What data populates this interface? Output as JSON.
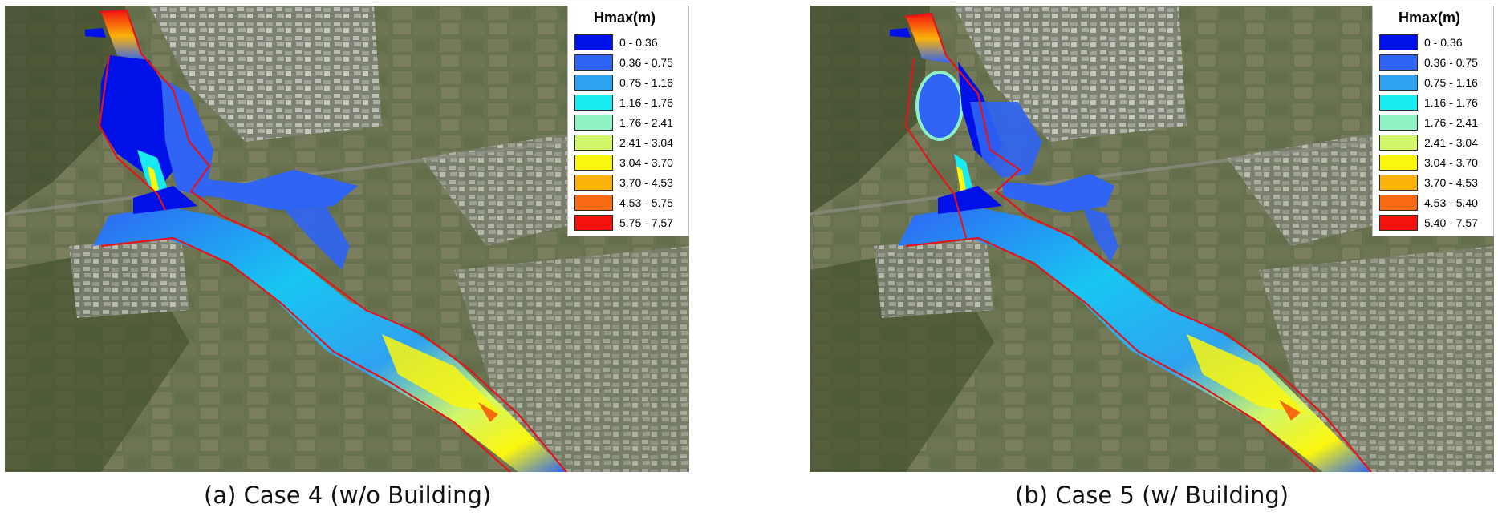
{
  "panels": [
    {
      "caption": "(a) Case 4 (w/o Building)",
      "legend": {
        "title": "Hmax(m)",
        "items": [
          {
            "label": "0 - 0.36",
            "color": "#0010e8"
          },
          {
            "label": "0.36 - 0.75",
            "color": "#2f64f4"
          },
          {
            "label": "0.75 - 1.16",
            "color": "#2fa2f0"
          },
          {
            "label": "1.16 - 1.76",
            "color": "#18eaf2"
          },
          {
            "label": "1.76 - 2.41",
            "color": "#8ff2c4"
          },
          {
            "label": "2.41 - 3.04",
            "color": "#d2f76a"
          },
          {
            "label": "3.04 - 3.70",
            "color": "#fbf60e"
          },
          {
            "label": "3.70 - 4.53",
            "color": "#fbb20a"
          },
          {
            "label": "4.53 - 5.75",
            "color": "#f86a12"
          },
          {
            "label": "5.75 - 7.57",
            "color": "#f4120f"
          }
        ]
      }
    },
    {
      "caption": "(b) Case 5 (w/ Building)",
      "legend": {
        "title": "Hmax(m)",
        "items": [
          {
            "label": "0 - 0.36",
            "color": "#0010e8"
          },
          {
            "label": "0.36 - 0.75",
            "color": "#2f64f4"
          },
          {
            "label": "0.75 - 1.16",
            "color": "#2fa2f0"
          },
          {
            "label": "1.16 - 1.76",
            "color": "#18eaf2"
          },
          {
            "label": "1.76 - 2.41",
            "color": "#8ff2c4"
          },
          {
            "label": "2.41 - 3.04",
            "color": "#d2f76a"
          },
          {
            "label": "3.04 - 3.70",
            "color": "#fbf60e"
          },
          {
            "label": "3.70 - 4.53",
            "color": "#fbb20a"
          },
          {
            "label": "4.53 - 5.40",
            "color": "#f86a12"
          },
          {
            "label": "5.40 - 7.57",
            "color": "#f4120f"
          }
        ]
      }
    }
  ],
  "colors": {
    "aerial_base": "#5f6a4a",
    "boundary_line": "#e0161a"
  }
}
